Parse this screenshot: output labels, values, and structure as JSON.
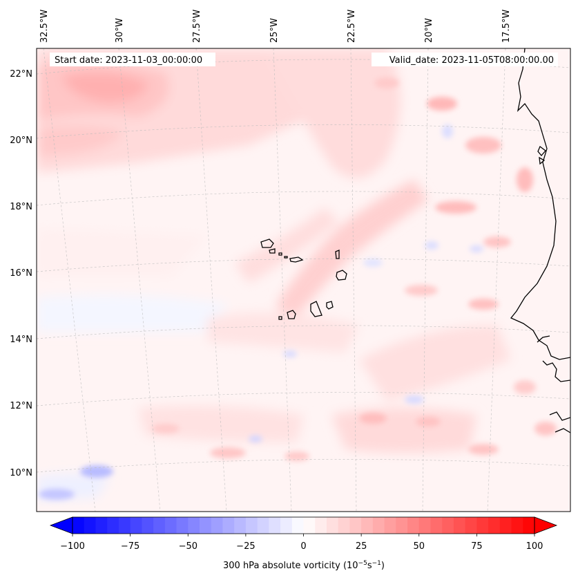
{
  "header": {
    "start_date": "Start date: 2023-11-03_00:00:00",
    "valid_date": "Valid_date: 2023-11-05T08:00:00.00"
  },
  "map": {
    "projection": "lambert-conformal",
    "region": "Eastern tropical Atlantic, Cape Verde islands and West African coast",
    "field": "300 hPa absolute vorticity",
    "gridlines": "on, dashed light grey",
    "lon_labels": [
      "32.5°W",
      "30°W",
      "27.5°W",
      "25°W",
      "22.5°W",
      "20°W",
      "17.5°W"
    ],
    "lat_labels": [
      "22°N",
      "20°N",
      "18°N",
      "16°N",
      "14°N",
      "12°N",
      "10°N"
    ]
  },
  "colorbar": {
    "label_prefix": "300 hPa absolute vorticity (10",
    "label_exp1": "−5",
    "label_mid": "s",
    "label_exp2": "−1",
    "label_suffix": ")",
    "ticks": [
      "−100",
      "−75",
      "−50",
      "−25",
      "0",
      "25",
      "50",
      "75",
      "100"
    ],
    "range": [
      -100,
      100
    ],
    "extend": "both",
    "colormap": "bwr",
    "colors": {
      "negative": "#0000ff",
      "zero": "#ffffff",
      "positive": "#ff0000"
    }
  }
}
